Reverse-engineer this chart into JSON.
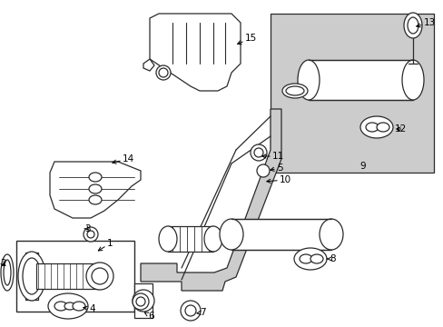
{
  "background_color": "#ffffff",
  "line_color": "#2a2a2a",
  "shaded_color": "#cccccc",
  "fig_width": 4.89,
  "fig_height": 3.6,
  "dpi": 100
}
